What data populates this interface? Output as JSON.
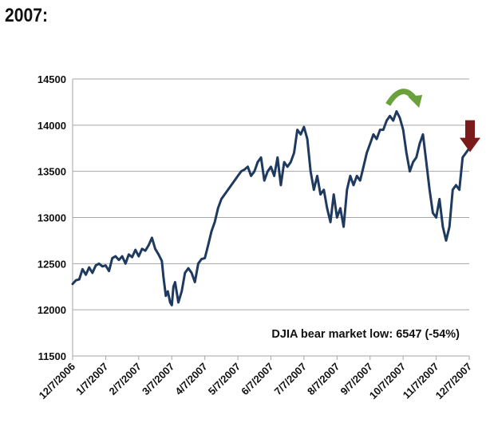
{
  "heading": "2007:",
  "chart_data": {
    "type": "line",
    "title": "",
    "xlabel": "",
    "ylabel": "",
    "ylim": [
      11500,
      14500
    ],
    "y_ticks": [
      11500,
      12000,
      12500,
      13000,
      13500,
      14000,
      14500
    ],
    "x_tick_labels": [
      "12/7/2006",
      "1/7/2007",
      "2/7/2007",
      "3/7/2007",
      "4/7/2007",
      "5/7/2007",
      "6/7/2007",
      "7/7/2007",
      "8/7/2007",
      "9/7/2007",
      "10/7/2007",
      "11/7/2007",
      "12/7/2007"
    ],
    "grid": true,
    "line_color": "#1f3a5f",
    "annotation": "DJIA bear market low: 6547  (-54%)",
    "markers": [
      {
        "icon": "curved-arrow-icon",
        "color": "#6aa13c",
        "x_month": 10.0,
        "y": 14310
      },
      {
        "icon": "down-arrow-icon",
        "color": "#7a1a1a",
        "x_month": 12.0,
        "y": 13950
      }
    ],
    "series": [
      {
        "x": [
          0,
          0.1,
          0.2,
          0.3,
          0.4,
          0.5,
          0.6,
          0.7,
          0.8,
          0.9,
          1.0,
          1.1,
          1.2,
          1.3,
          1.4,
          1.5,
          1.6,
          1.7,
          1.8,
          1.9,
          2.0,
          2.1,
          2.2,
          2.3,
          2.4,
          2.5,
          2.6,
          2.7,
          2.75,
          2.82,
          2.88,
          2.95,
          3.0,
          3.05,
          3.1,
          3.2,
          3.3,
          3.4,
          3.5,
          3.6,
          3.7,
          3.8,
          3.9,
          4.0,
          4.1,
          4.2,
          4.3,
          4.4,
          4.5,
          4.6,
          4.7,
          4.8,
          4.9,
          5.0,
          5.1,
          5.2,
          5.3,
          5.4,
          5.5,
          5.6,
          5.7,
          5.8,
          5.9,
          6.0,
          6.1,
          6.2,
          6.3,
          6.4,
          6.5,
          6.6,
          6.7,
          6.8,
          6.9,
          7.0,
          7.1,
          7.2,
          7.3,
          7.4,
          7.5,
          7.6,
          7.7,
          7.8,
          7.9,
          8.0,
          8.1,
          8.2,
          8.3,
          8.4,
          8.5,
          8.6,
          8.7,
          8.8,
          8.9,
          9.0,
          9.1,
          9.2,
          9.3,
          9.4,
          9.5,
          9.6,
          9.7,
          9.8,
          9.9,
          10.0,
          10.1,
          10.2,
          10.3,
          10.4,
          10.5,
          10.6,
          10.7,
          10.8,
          10.9,
          11.0,
          11.1,
          11.2,
          11.3,
          11.4,
          11.5,
          11.6,
          11.7,
          11.8,
          11.9,
          12.0
        ],
        "y": [
          12280,
          12320,
          12330,
          12440,
          12380,
          12460,
          12400,
          12480,
          12500,
          12470,
          12480,
          12420,
          12560,
          12580,
          12540,
          12580,
          12500,
          12600,
          12570,
          12650,
          12580,
          12660,
          12640,
          12700,
          12780,
          12660,
          12600,
          12530,
          12350,
          12150,
          12200,
          12080,
          12050,
          12250,
          12300,
          12080,
          12200,
          12400,
          12450,
          12400,
          12300,
          12500,
          12550,
          12560,
          12700,
          12850,
          12950,
          13100,
          13200,
          13250,
          13300,
          13350,
          13400,
          13450,
          13500,
          13520,
          13550,
          13450,
          13500,
          13600,
          13650,
          13400,
          13500,
          13550,
          13450,
          13650,
          13350,
          13600,
          13550,
          13600,
          13700,
          13950,
          13900,
          13980,
          13850,
          13500,
          13300,
          13450,
          13250,
          13300,
          13100,
          12950,
          13250,
          13000,
          13100,
          12900,
          13300,
          13450,
          13350,
          13450,
          13400,
          13550,
          13700,
          13800,
          13900,
          13850,
          13950,
          13950,
          14050,
          14100,
          14050,
          14150,
          14080,
          13950,
          13700,
          13500,
          13600,
          13650,
          13800,
          13900,
          13600,
          13300,
          13050,
          13000,
          13200,
          12900,
          12750,
          12900,
          13300,
          13350,
          13300,
          13650,
          13700,
          13750
        ],
        "values_note": ""
      }
    ]
  }
}
